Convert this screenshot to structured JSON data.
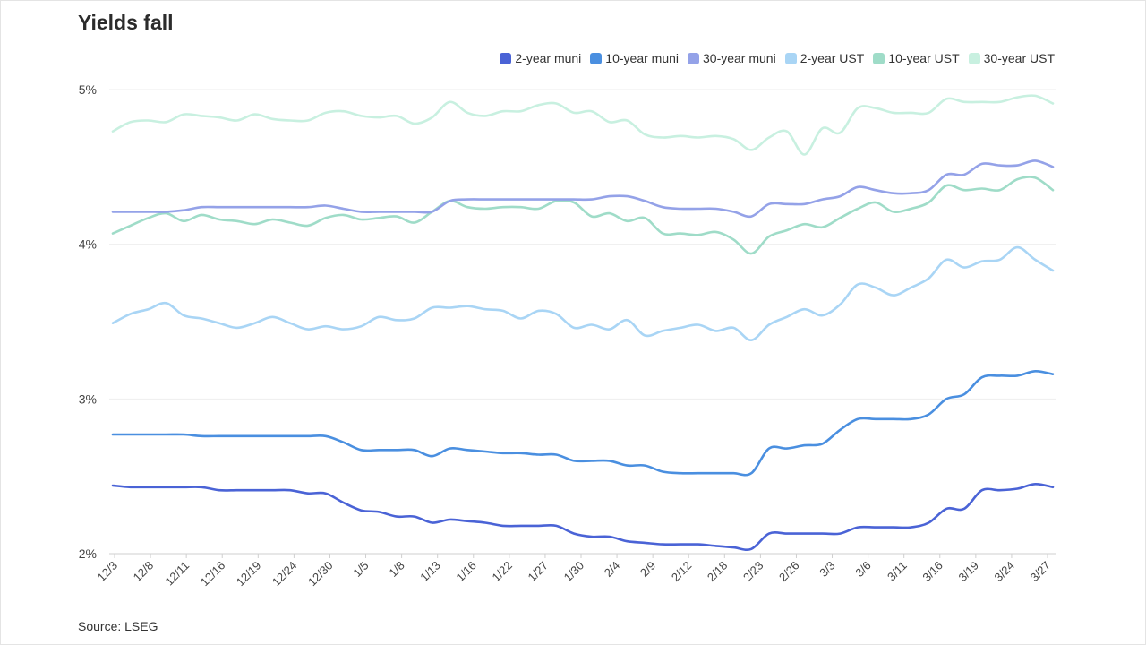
{
  "chart_data": {
    "type": "line",
    "title": "Yields fall",
    "source": "Source: LSEG",
    "ylim": [
      2,
      5
    ],
    "y_ticks": [
      {
        "value": 5,
        "label": "5%"
      },
      {
        "value": 4,
        "label": "4%"
      },
      {
        "value": 3,
        "label": "3%"
      },
      {
        "value": 2,
        "label": "2%"
      }
    ],
    "x_tick_labels": [
      "12/3",
      "12/8",
      "12/11",
      "12/16",
      "12/19",
      "12/24",
      "12/30",
      "1/5",
      "1/8",
      "1/13",
      "1/16",
      "1/22",
      "1/27",
      "1/30",
      "2/4",
      "2/9",
      "2/12",
      "2/18",
      "2/23",
      "2/26",
      "3/3",
      "3/6",
      "3/11",
      "3/16",
      "3/19",
      "3/24",
      "3/27"
    ],
    "grid": true,
    "legend_position": "top-right",
    "series": [
      {
        "name": "2-year muni",
        "color": "#4a63d6",
        "values": [
          2.44,
          2.43,
          2.43,
          2.43,
          2.43,
          2.43,
          2.41,
          2.41,
          2.41,
          2.41,
          2.41,
          2.39,
          2.39,
          2.33,
          2.28,
          2.27,
          2.24,
          2.24,
          2.2,
          2.22,
          2.21,
          2.2,
          2.18,
          2.18,
          2.18,
          2.18,
          2.13,
          2.11,
          2.11,
          2.08,
          2.07,
          2.06,
          2.06,
          2.06,
          2.05,
          2.04,
          2.03,
          2.13,
          2.13,
          2.13,
          2.13,
          2.13,
          2.17,
          2.17,
          2.17,
          2.17,
          2.2,
          2.29,
          2.29,
          2.41,
          2.41,
          2.42,
          2.45,
          2.43
        ]
      },
      {
        "name": "10-year muni",
        "color": "#4a8fe0",
        "values": [
          2.77,
          2.77,
          2.77,
          2.77,
          2.77,
          2.76,
          2.76,
          2.76,
          2.76,
          2.76,
          2.76,
          2.76,
          2.76,
          2.72,
          2.67,
          2.67,
          2.67,
          2.67,
          2.63,
          2.68,
          2.67,
          2.66,
          2.65,
          2.65,
          2.64,
          2.64,
          2.6,
          2.6,
          2.6,
          2.57,
          2.57,
          2.53,
          2.52,
          2.52,
          2.52,
          2.52,
          2.52,
          2.68,
          2.68,
          2.7,
          2.71,
          2.8,
          2.87,
          2.87,
          2.87,
          2.87,
          2.9,
          3.0,
          3.03,
          3.14,
          3.15,
          3.15,
          3.18,
          3.16
        ]
      },
      {
        "name": "30-year muni",
        "color": "#94a2e8",
        "values": [
          4.21,
          4.21,
          4.21,
          4.21,
          4.22,
          4.24,
          4.24,
          4.24,
          4.24,
          4.24,
          4.24,
          4.24,
          4.25,
          4.23,
          4.21,
          4.21,
          4.21,
          4.21,
          4.21,
          4.28,
          4.29,
          4.29,
          4.29,
          4.29,
          4.29,
          4.29,
          4.29,
          4.29,
          4.31,
          4.31,
          4.28,
          4.24,
          4.23,
          4.23,
          4.23,
          4.21,
          4.18,
          4.26,
          4.26,
          4.26,
          4.29,
          4.31,
          4.37,
          4.35,
          4.33,
          4.33,
          4.35,
          4.45,
          4.45,
          4.52,
          4.51,
          4.51,
          4.54,
          4.5
        ]
      },
      {
        "name": "2-year UST",
        "color": "#a9d5f5",
        "values": [
          3.49,
          3.55,
          3.58,
          3.62,
          3.54,
          3.52,
          3.49,
          3.46,
          3.49,
          3.53,
          3.49,
          3.45,
          3.47,
          3.45,
          3.47,
          3.53,
          3.51,
          3.52,
          3.59,
          3.59,
          3.6,
          3.58,
          3.57,
          3.52,
          3.57,
          3.55,
          3.46,
          3.48,
          3.45,
          3.51,
          3.41,
          3.44,
          3.46,
          3.48,
          3.44,
          3.46,
          3.38,
          3.48,
          3.53,
          3.58,
          3.54,
          3.61,
          3.74,
          3.72,
          3.67,
          3.72,
          3.78,
          3.9,
          3.85,
          3.89,
          3.9,
          3.98,
          3.9,
          3.83
        ]
      },
      {
        "name": "10-year UST",
        "color": "#9fdcc8",
        "values": [
          4.07,
          4.12,
          4.17,
          4.2,
          4.15,
          4.19,
          4.16,
          4.15,
          4.13,
          4.16,
          4.14,
          4.12,
          4.17,
          4.19,
          4.16,
          4.17,
          4.18,
          4.14,
          4.21,
          4.28,
          4.24,
          4.23,
          4.24,
          4.24,
          4.23,
          4.28,
          4.27,
          4.18,
          4.2,
          4.15,
          4.17,
          4.07,
          4.07,
          4.06,
          4.08,
          4.03,
          3.94,
          4.05,
          4.09,
          4.13,
          4.11,
          4.17,
          4.23,
          4.27,
          4.21,
          4.23,
          4.27,
          4.38,
          4.35,
          4.36,
          4.35,
          4.42,
          4.43,
          4.35
        ]
      },
      {
        "name": "30-year UST",
        "color": "#c8f0e0",
        "values": [
          4.73,
          4.79,
          4.8,
          4.79,
          4.84,
          4.83,
          4.82,
          4.8,
          4.84,
          4.81,
          4.8,
          4.8,
          4.85,
          4.86,
          4.83,
          4.82,
          4.83,
          4.78,
          4.82,
          4.92,
          4.85,
          4.83,
          4.86,
          4.86,
          4.9,
          4.91,
          4.85,
          4.86,
          4.79,
          4.8,
          4.71,
          4.69,
          4.7,
          4.69,
          4.7,
          4.68,
          4.61,
          4.69,
          4.73,
          4.58,
          4.75,
          4.72,
          4.88,
          4.88,
          4.85,
          4.85,
          4.85,
          4.94,
          4.92,
          4.92,
          4.92,
          4.95,
          4.96,
          4.91
        ]
      }
    ]
  }
}
